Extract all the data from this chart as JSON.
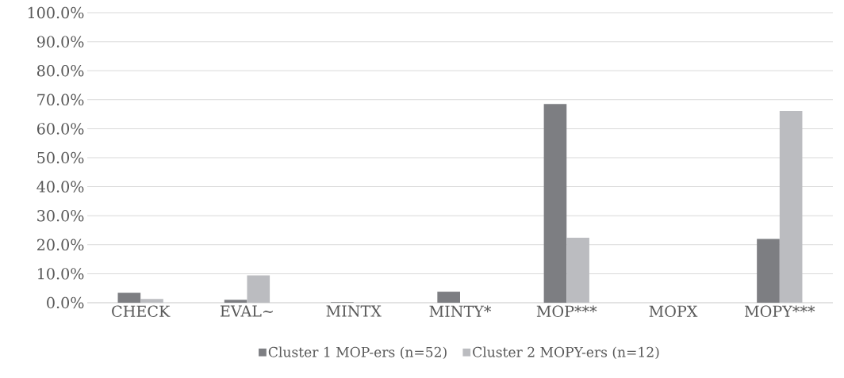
{
  "chart_data": {
    "type": "bar",
    "categories": [
      "CHECK",
      "EVAL~",
      "MINTX",
      "MINTY*",
      "MOP***",
      "MOPX",
      "MOPY***"
    ],
    "series": [
      {
        "name": "Cluster 1 MOP-ers (n=52)",
        "color": "#7d7e82",
        "values": [
          3.4,
          1.0,
          0.2,
          3.8,
          68.5,
          0,
          22.0
        ]
      },
      {
        "name": "Cluster 2 MOPY-ers (n=12)",
        "color": "#bbbcc0",
        "values": [
          1.3,
          9.4,
          0,
          0,
          22.4,
          0,
          66.1
        ]
      }
    ],
    "ylim": [
      0,
      100
    ],
    "yticks": [
      {
        "value": 0,
        "label": "0.0%"
      },
      {
        "value": 10,
        "label": "10.0%"
      },
      {
        "value": 20,
        "label": "20.0%"
      },
      {
        "value": 30,
        "label": "30.0%"
      },
      {
        "value": 40,
        "label": "40.0%"
      },
      {
        "value": 50,
        "label": "50.0%"
      },
      {
        "value": 60,
        "label": "60.0%"
      },
      {
        "value": 70,
        "label": "70.0%"
      },
      {
        "value": 80,
        "label": "80.0%"
      },
      {
        "value": 90,
        "label": "90.0%"
      },
      {
        "value": 100,
        "label": "100.0%"
      }
    ],
    "grid": "y",
    "legend": "bottom"
  }
}
